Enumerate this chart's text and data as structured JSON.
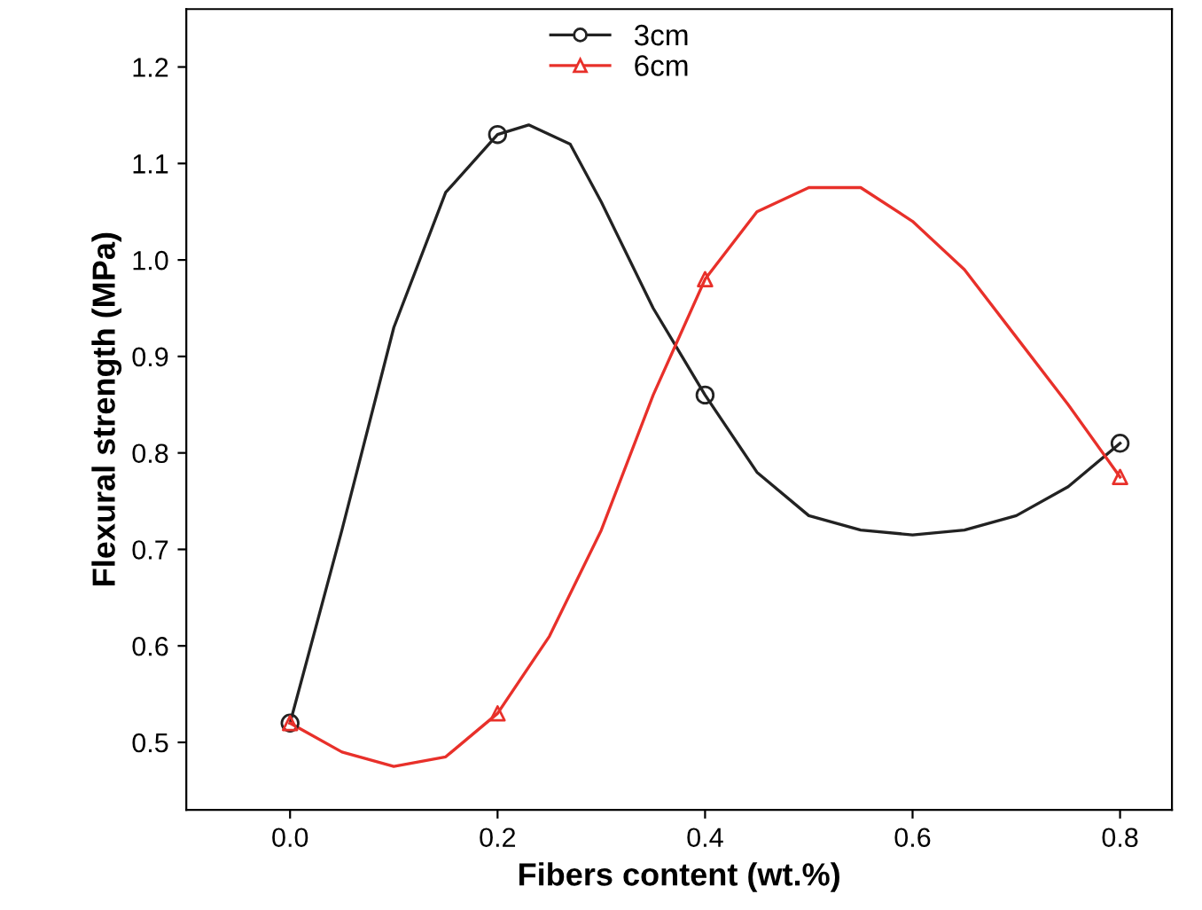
{
  "chart_data": {
    "type": "line",
    "xlabel": "Fibers content (wt.%)",
    "ylabel": "Flexural strength (MPa)",
    "xlim": [
      -0.1,
      0.85
    ],
    "xticks": [
      {
        "value": 0,
        "label": "0.0"
      },
      0.2,
      0.4,
      0.6,
      0.8
    ],
    "ylim": [
      0.43,
      1.26
    ],
    "yticks": [
      0.5,
      0.6,
      0.7,
      0.8,
      0.9,
      {
        "value": 1.0,
        "label": "1.0"
      },
      1.1,
      1.2
    ],
    "grid": false,
    "legend": "top",
    "marker": "none",
    "line_style": "solid",
    "series": [
      {
        "name": "3cm",
        "color": "#222222",
        "x": [
          0,
          0.05,
          0.1,
          0.15,
          0.2,
          0.23,
          0.27,
          0.3,
          0.35,
          0.4,
          0.45,
          0.5,
          0.55,
          0.6,
          0.65,
          0.7,
          0.75,
          0.8
        ],
        "values": [
          0.52,
          0.72,
          0.93,
          1.07,
          1.13,
          1.14,
          1.12,
          1.06,
          0.95,
          0.86,
          0.78,
          0.735,
          0.72,
          0.715,
          0.72,
          0.735,
          0.765,
          0.81
        ]
      },
      {
        "type": "scatter",
        "marker": "circle",
        "color": "#222222",
        "x": [
          0,
          0.2,
          0.4,
          0.8
        ],
        "values": [
          0.52,
          1.13,
          0.86,
          0.81
        ]
      },
      {
        "name": "6cm",
        "color": "#e8302a",
        "x": [
          0,
          0.05,
          0.1,
          0.15,
          0.2,
          0.25,
          0.3,
          0.35,
          0.4,
          0.45,
          0.5,
          0.55,
          0.6,
          0.65,
          0.7,
          0.75,
          0.8
        ],
        "values": [
          0.52,
          0.49,
          0.475,
          0.485,
          0.53,
          0.61,
          0.72,
          0.86,
          0.98,
          1.05,
          1.075,
          1.075,
          1.04,
          0.99,
          0.92,
          0.85,
          0.775
        ]
      },
      {
        "type": "scatter",
        "marker": "triangle",
        "color": "#e8302a",
        "x": [
          0,
          0.2,
          0.4,
          0.8
        ],
        "values": [
          0.52,
          0.53,
          0.98,
          0.775
        ]
      }
    ]
  }
}
